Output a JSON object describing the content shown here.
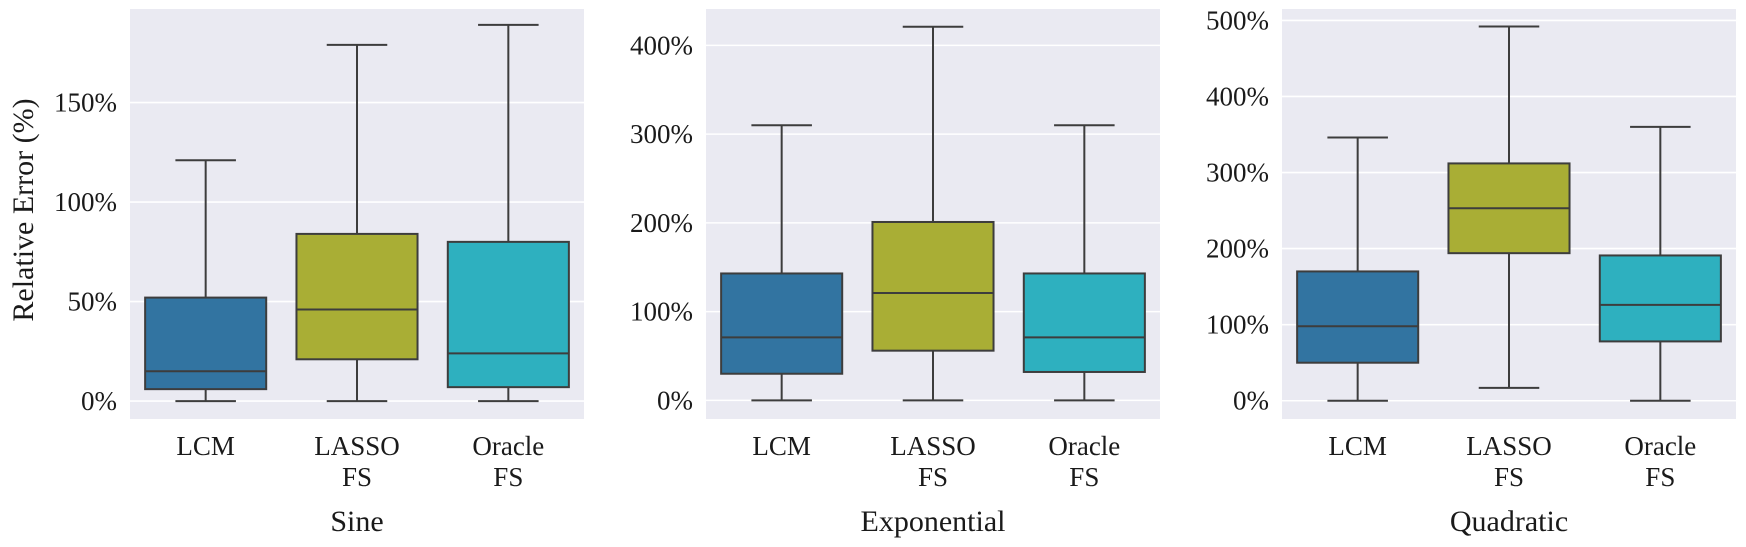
{
  "chart_data": [
    {
      "type": "box",
      "title": "",
      "xlabel": "Sine",
      "ylabel": "Relative Error (%)",
      "ylim": [
        -9,
        197
      ],
      "yticks": [
        0,
        50,
        100,
        150
      ],
      "tick_suffix": "%",
      "grid": true,
      "categories": [
        [
          "LCM"
        ],
        [
          "LASSO",
          "FS"
        ],
        [
          "Oracle",
          "FS"
        ]
      ],
      "boxes": [
        {
          "min": 0,
          "q1": 6,
          "median": 15,
          "q3": 52,
          "max": 121,
          "color": "#3274a1"
        },
        {
          "min": 0,
          "q1": 21,
          "median": 46,
          "q3": 84,
          "max": 179,
          "color": "#a9ae35"
        },
        {
          "min": 0,
          "q1": 7,
          "median": 24,
          "q3": 80,
          "max": 189,
          "color": "#2eb0bf"
        }
      ]
    },
    {
      "type": "box",
      "title": "",
      "xlabel": "Exponential",
      "ylabel": "",
      "ylim": [
        -21,
        441
      ],
      "yticks": [
        0,
        100,
        200,
        300,
        400
      ],
      "tick_suffix": "%",
      "grid": true,
      "categories": [
        [
          "LCM"
        ],
        [
          "LASSO",
          "FS"
        ],
        [
          "Oracle",
          "FS"
        ]
      ],
      "boxes": [
        {
          "min": 0,
          "q1": 30,
          "median": 71,
          "q3": 143,
          "max": 310,
          "color": "#3274a1"
        },
        {
          "min": 0,
          "q1": 56,
          "median": 121,
          "q3": 201,
          "max": 421,
          "color": "#a9ae35"
        },
        {
          "min": 0,
          "q1": 32,
          "median": 71,
          "q3": 143,
          "max": 310,
          "color": "#2eb0bf"
        }
      ]
    },
    {
      "type": "box",
      "title": "",
      "xlabel": "Quadratic",
      "ylabel": "",
      "ylim": [
        -24,
        515
      ],
      "yticks": [
        0,
        100,
        200,
        300,
        400,
        500
      ],
      "tick_suffix": "%",
      "grid": true,
      "categories": [
        [
          "LCM"
        ],
        [
          "LASSO",
          "FS"
        ],
        [
          "Oracle",
          "FS"
        ]
      ],
      "boxes": [
        {
          "min": 0,
          "q1": 50,
          "median": 98,
          "q3": 170,
          "max": 346,
          "color": "#3274a1"
        },
        {
          "min": 17,
          "q1": 194,
          "median": 253,
          "q3": 312,
          "max": 492,
          "color": "#a9ae35"
        },
        {
          "min": 0,
          "q1": 78,
          "median": 126,
          "q3": 191,
          "max": 360,
          "color": "#2eb0bf"
        }
      ]
    }
  ]
}
